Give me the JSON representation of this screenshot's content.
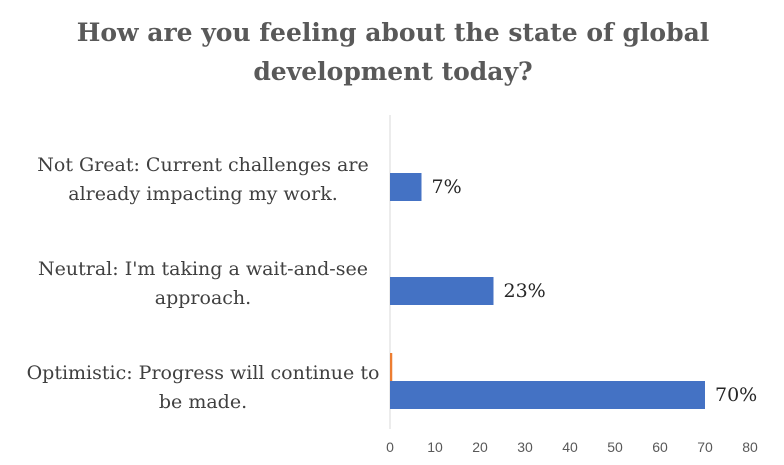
{
  "title_lines": [
    "How are you feeling about the state of global",
    "development today?"
  ],
  "chart_data": {
    "type": "bar",
    "orientation": "horizontal",
    "title": "How are you feeling about the state of global development today?",
    "xlim": [
      0,
      80
    ],
    "ticks": [
      0,
      10,
      20,
      30,
      40,
      50,
      60,
      70,
      80
    ],
    "grid": false,
    "categories": [
      {
        "lines": [
          "Not Great: Current challenges are",
          "already impacting my work."
        ]
      },
      {
        "lines": [
          "Neutral: I'm taking a wait-and-see",
          "approach."
        ]
      },
      {
        "lines": [
          "Optimistic: Progress will continue to",
          "be made."
        ]
      }
    ],
    "series": [
      {
        "values": [
          7,
          23,
          70
        ],
        "labels": [
          "7%",
          "23%",
          "70%"
        ],
        "color": "#4472c4"
      },
      {
        "values": [
          0,
          0,
          0.5
        ],
        "color": "#ed7d31"
      }
    ]
  }
}
